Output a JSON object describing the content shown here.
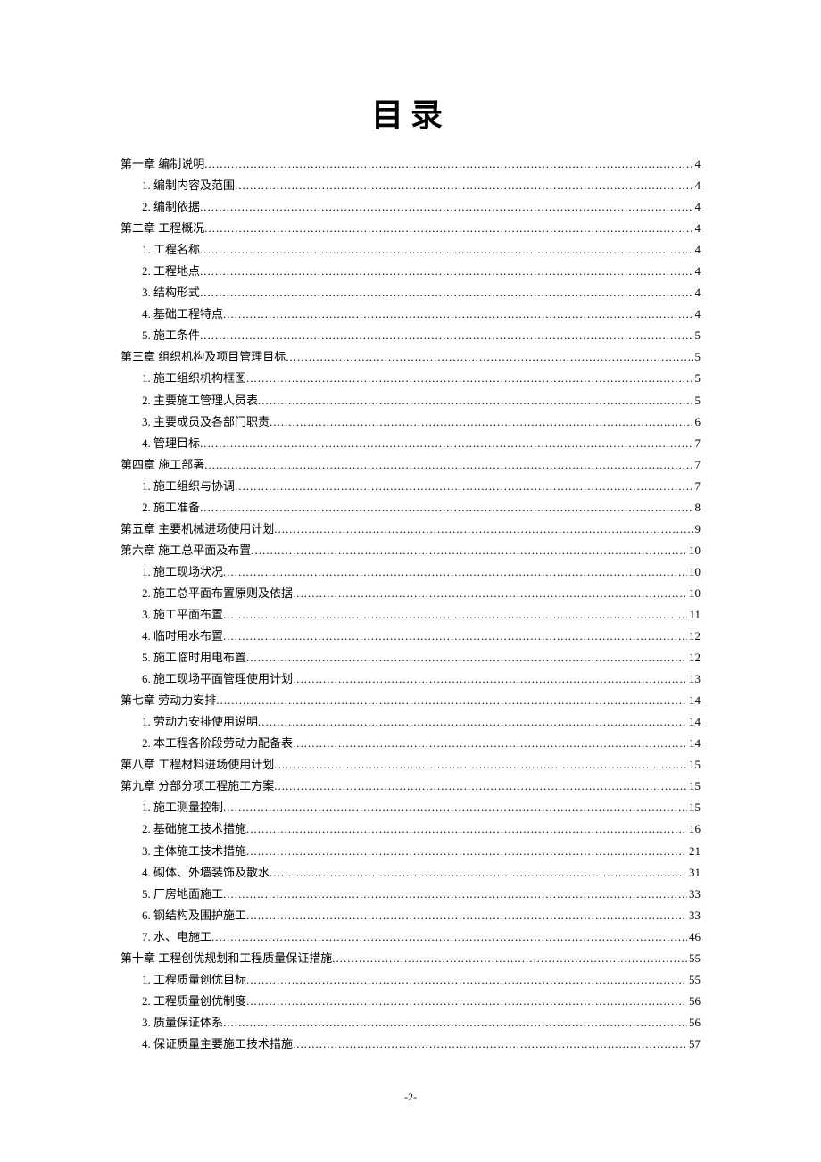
{
  "title": "目录",
  "footer_page": "-2-",
  "entries": [
    {
      "level": 0,
      "label": "第一章 编制说明",
      "page": "4"
    },
    {
      "level": 1,
      "label": "1. 编制内容及范围",
      "page": "4"
    },
    {
      "level": 1,
      "label": "2. 编制依据",
      "page": "4"
    },
    {
      "level": 0,
      "label": "第二章 工程概况",
      "page": "4"
    },
    {
      "level": 1,
      "label": "1. 工程名称",
      "page": "4"
    },
    {
      "level": 1,
      "label": "2. 工程地点",
      "page": "4"
    },
    {
      "level": 1,
      "label": "3. 结构形式",
      "page": "4"
    },
    {
      "level": 1,
      "label": "4. 基础工程特点",
      "page": "4"
    },
    {
      "level": 1,
      "label": "5. 施工条件",
      "page": "5"
    },
    {
      "level": 0,
      "label": "第三章 组织机构及项目管理目标",
      "page": "5"
    },
    {
      "level": 1,
      "label": "1. 施工组织机构框图",
      "page": "5"
    },
    {
      "level": 1,
      "label": "2. 主要施工管理人员表",
      "page": "5"
    },
    {
      "level": 1,
      "label": "3. 主要成员及各部门职责",
      "page": "6"
    },
    {
      "level": 1,
      "label": "4. 管理目标",
      "page": "7"
    },
    {
      "level": 0,
      "label": "第四章 施工部署",
      "page": "7"
    },
    {
      "level": 1,
      "label": "1. 施工组织与协调",
      "page": "7"
    },
    {
      "level": 1,
      "label": "2. 施工准备",
      "page": "8"
    },
    {
      "level": 0,
      "label": "第五章 主要机械进场使用计划",
      "page": "9"
    },
    {
      "level": 0,
      "label": "第六章 施工总平面及布置",
      "page": "10"
    },
    {
      "level": 1,
      "label": "1. 施工现场状况",
      "page": "10"
    },
    {
      "level": 1,
      "label": "2. 施工总平面布置原则及依据",
      "page": "10"
    },
    {
      "level": 1,
      "label": "3. 施工平面布置",
      "page": "11"
    },
    {
      "level": 1,
      "label": "4. 临时用水布置",
      "page": "12"
    },
    {
      "level": 1,
      "label": "5. 施工临时用电布置",
      "page": "12"
    },
    {
      "level": 1,
      "label": "6. 施工现场平面管理使用计划",
      "page": "13"
    },
    {
      "level": 0,
      "label": "第七章 劳动力安排",
      "page": "14"
    },
    {
      "level": 1,
      "label": "1. 劳动力安排使用说明",
      "page": "14"
    },
    {
      "level": 1,
      "label": "2. 本工程各阶段劳动力配备表",
      "page": "14"
    },
    {
      "level": 0,
      "label": "第八章 工程材料进场使用计划",
      "page": "15"
    },
    {
      "level": 0,
      "label": "第九章 分部分项工程施工方案",
      "page": "15"
    },
    {
      "level": 1,
      "label": "1. 施工测量控制",
      "page": "15"
    },
    {
      "level": 1,
      "label": "2. 基础施工技术措施",
      "page": "16"
    },
    {
      "level": 1,
      "label": "3. 主体施工技术措施",
      "page": "21"
    },
    {
      "level": 1,
      "label": "4. 砌体、外墙装饰及散水",
      "page": "31"
    },
    {
      "level": 1,
      "label": "5. 厂房地面施工",
      "page": "33"
    },
    {
      "level": 1,
      "label": "6. 钢结构及围护施工",
      "page": "33"
    },
    {
      "level": 1,
      "label": "7. 水、电施工",
      "page": "46"
    },
    {
      "level": 0,
      "label": "第十章 工程创优规划和工程质量保证措施",
      "page": "55"
    },
    {
      "level": 1,
      "label": "1. 工程质量创优目标",
      "page": "55"
    },
    {
      "level": 1,
      "label": "2. 工程质量创优制度",
      "page": "56"
    },
    {
      "level": 1,
      "label": "3. 质量保证体系",
      "page": "56"
    },
    {
      "level": 1,
      "label": "4. 保证质量主要施工技术措施",
      "page": "57"
    }
  ]
}
